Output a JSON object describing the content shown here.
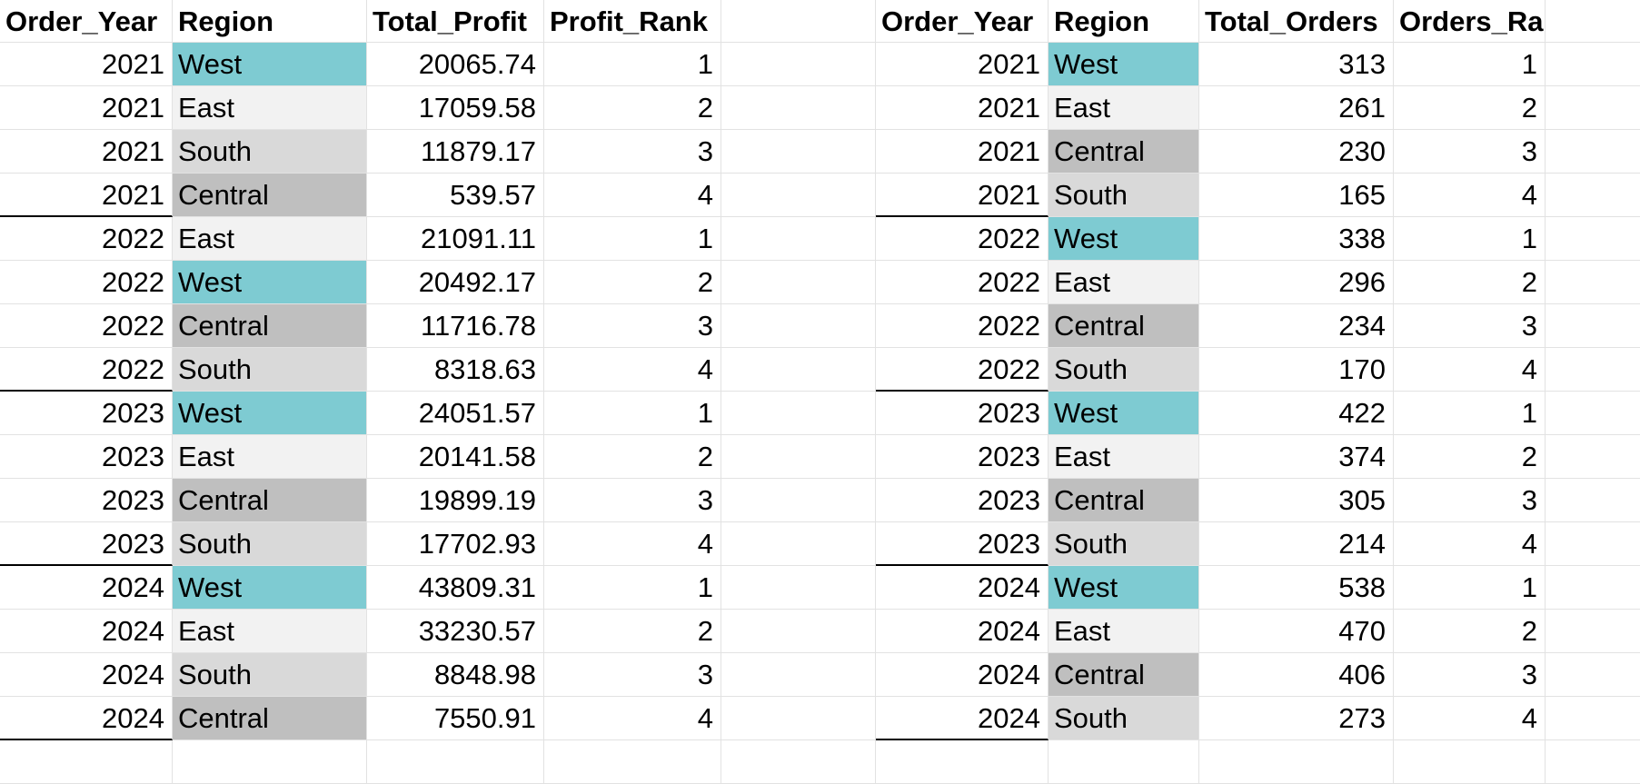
{
  "colors": {
    "West": "#7ecbd2",
    "East": "#f2f2f2",
    "South": "#d9d9d9",
    "Central": "#bfbfbf"
  },
  "profit_table": {
    "headers": [
      "Order_Year",
      "Region",
      "Total_Profit",
      "Profit_Rank"
    ],
    "rows": [
      [
        "2021",
        "West",
        "20065.74",
        "1"
      ],
      [
        "2021",
        "East",
        "17059.58",
        "2"
      ],
      [
        "2021",
        "South",
        "11879.17",
        "3"
      ],
      [
        "2021",
        "Central",
        "539.57",
        "4"
      ],
      [
        "2022",
        "East",
        "21091.11",
        "1"
      ],
      [
        "2022",
        "West",
        "20492.17",
        "2"
      ],
      [
        "2022",
        "Central",
        "11716.78",
        "3"
      ],
      [
        "2022",
        "South",
        "8318.63",
        "4"
      ],
      [
        "2023",
        "West",
        "24051.57",
        "1"
      ],
      [
        "2023",
        "East",
        "20141.58",
        "2"
      ],
      [
        "2023",
        "Central",
        "19899.19",
        "3"
      ],
      [
        "2023",
        "South",
        "17702.93",
        "4"
      ],
      [
        "2024",
        "West",
        "43809.31",
        "1"
      ],
      [
        "2024",
        "East",
        "33230.57",
        "2"
      ],
      [
        "2024",
        "South",
        "8848.98",
        "3"
      ],
      [
        "2024",
        "Central",
        "7550.91",
        "4"
      ]
    ]
  },
  "orders_table": {
    "headers": [
      "Order_Year",
      "Region",
      "Total_Orders",
      "Orders_Rank"
    ],
    "rows": [
      [
        "2021",
        "West",
        "313",
        "1"
      ],
      [
        "2021",
        "East",
        "261",
        "2"
      ],
      [
        "2021",
        "Central",
        "230",
        "3"
      ],
      [
        "2021",
        "South",
        "165",
        "4"
      ],
      [
        "2022",
        "West",
        "338",
        "1"
      ],
      [
        "2022",
        "East",
        "296",
        "2"
      ],
      [
        "2022",
        "Central",
        "234",
        "3"
      ],
      [
        "2022",
        "South",
        "170",
        "4"
      ],
      [
        "2023",
        "West",
        "422",
        "1"
      ],
      [
        "2023",
        "East",
        "374",
        "2"
      ],
      [
        "2023",
        "Central",
        "305",
        "3"
      ],
      [
        "2023",
        "South",
        "214",
        "4"
      ],
      [
        "2024",
        "West",
        "538",
        "1"
      ],
      [
        "2024",
        "East",
        "470",
        "2"
      ],
      [
        "2024",
        "Central",
        "406",
        "3"
      ],
      [
        "2024",
        "South",
        "273",
        "4"
      ]
    ]
  }
}
